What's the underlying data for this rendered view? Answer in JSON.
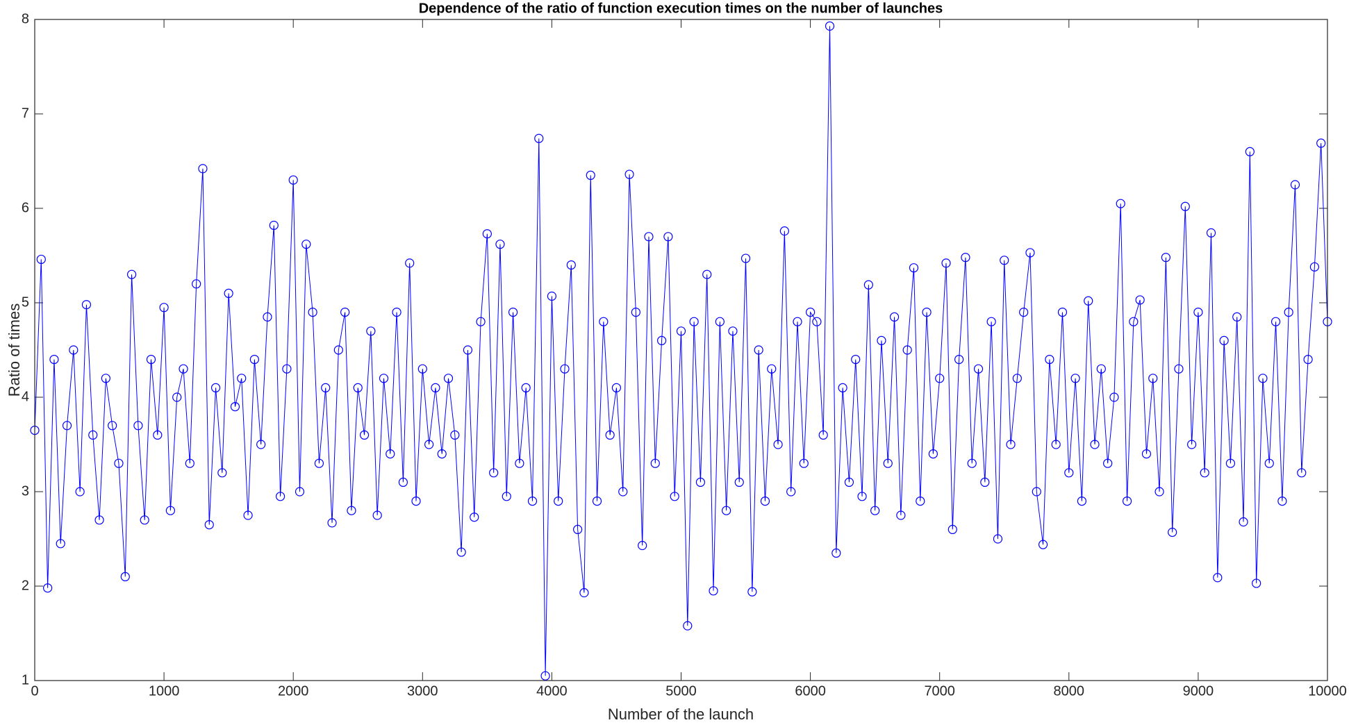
{
  "chart_data": {
    "type": "line",
    "title": "Dependence of the ratio of function execution times on the number of launches",
    "x_label": "Number of the launch",
    "y_label": "Ratio of times",
    "color": "#0000ff",
    "marker": "circle",
    "grid": false,
    "xlim": [
      0,
      10000
    ],
    "xticks": [
      0,
      1000,
      2000,
      3000,
      4000,
      5000,
      6000,
      7000,
      8000,
      9000,
      10000
    ],
    "ylim": [
      1,
      8
    ],
    "yticks": [
      1,
      2,
      3,
      4,
      5,
      6,
      7,
      8
    ],
    "x": [
      0,
      50,
      100,
      150,
      200,
      250,
      300,
      350,
      400,
      450,
      500,
      550,
      600,
      650,
      700,
      750,
      800,
      850,
      900,
      950,
      1000,
      1050,
      1100,
      1150,
      1200,
      1250,
      1300,
      1350,
      1400,
      1450,
      1500,
      1550,
      1600,
      1650,
      1700,
      1750,
      1800,
      1850,
      1900,
      1950,
      2000,
      2050,
      2100,
      2150,
      2200,
      2250,
      2300,
      2350,
      2400,
      2450,
      2500,
      2550,
      2600,
      2650,
      2700,
      2750,
      2800,
      2850,
      2900,
      2950,
      3000,
      3050,
      3100,
      3150,
      3200,
      3250,
      3300,
      3350,
      3400,
      3450,
      3500,
      3550,
      3600,
      3650,
      3700,
      3750,
      3800,
      3850,
      3900,
      3950,
      4000,
      4050,
      4100,
      4150,
      4200,
      4250,
      4300,
      4350,
      4400,
      4450,
      4500,
      4550,
      4600,
      4650,
      4700,
      4750,
      4800,
      4850,
      4900,
      4950,
      5000,
      5050,
      5100,
      5150,
      5200,
      5250,
      5300,
      5350,
      5400,
      5450,
      5500,
      5550,
      5600,
      5650,
      5700,
      5750,
      5800,
      5850,
      5900,
      5950,
      6000,
      6050,
      6100,
      6150,
      6200,
      6250,
      6300,
      6350,
      6400,
      6450,
      6500,
      6550,
      6600,
      6650,
      6700,
      6750,
      6800,
      6850,
      6900,
      6950,
      7000,
      7050,
      7100,
      7150,
      7200,
      7250,
      7300,
      7350,
      7400,
      7450,
      7500,
      7550,
      7600,
      7650,
      7700,
      7750,
      7800,
      7850,
      7900,
      7950,
      8000,
      8050,
      8100,
      8150,
      8200,
      8250,
      8300,
      8350,
      8400,
      8450,
      8500,
      8550,
      8600,
      8650,
      8700,
      8750,
      8800,
      8850,
      8900,
      8950,
      9000,
      9050,
      9100,
      9150,
      9200,
      9250,
      9300,
      9350,
      9400,
      9450,
      9500,
      9550,
      9600,
      9650,
      9700,
      9750,
      9800,
      9850,
      9900,
      9950,
      10000
    ],
    "values": [
      3.65,
      5.46,
      1.98,
      4.4,
      2.45,
      3.7,
      4.5,
      3.0,
      4.98,
      3.6,
      2.7,
      4.2,
      3.7,
      3.3,
      2.1,
      5.3,
      3.7,
      2.7,
      4.4,
      3.6,
      4.95,
      2.8,
      4.0,
      4.3,
      3.3,
      5.2,
      6.42,
      2.65,
      4.1,
      3.2,
      5.1,
      3.9,
      4.2,
      2.75,
      4.4,
      3.5,
      4.85,
      5.82,
      2.95,
      4.3,
      6.3,
      3.0,
      5.62,
      4.9,
      3.3,
      4.1,
      2.67,
      4.5,
      4.9,
      2.8,
      4.1,
      3.6,
      4.7,
      2.75,
      4.2,
      3.4,
      4.9,
      3.1,
      5.42,
      2.9,
      4.3,
      3.5,
      4.1,
      3.4,
      4.2,
      3.6,
      2.36,
      4.5,
      2.73,
      4.8,
      5.73,
      3.2,
      5.62,
      2.95,
      4.9,
      3.3,
      4.1,
      2.9,
      6.74,
      1.05,
      5.07,
      2.9,
      4.3,
      5.4,
      2.6,
      1.93,
      6.35,
      2.9,
      4.8,
      3.6,
      4.1,
      3.0,
      6.36,
      4.9,
      2.43,
      5.7,
      3.3,
      4.6,
      5.7,
      2.95,
      4.7,
      1.58,
      4.8,
      3.1,
      5.3,
      1.95,
      4.8,
      2.8,
      4.7,
      3.1,
      5.47,
      1.94,
      4.5,
      2.9,
      4.3,
      3.5,
      5.76,
      3.0,
      4.8,
      3.3,
      4.9,
      4.8,
      3.6,
      7.93,
      2.35,
      4.1,
      3.1,
      4.4,
      2.95,
      5.19,
      2.8,
      4.6,
      3.3,
      4.85,
      2.75,
      4.5,
      5.37,
      2.9,
      4.9,
      3.4,
      4.2,
      5.42,
      2.6,
      4.4,
      5.48,
      3.3,
      4.3,
      3.1,
      4.8,
      2.5,
      5.45,
      3.5,
      4.2,
      4.9,
      5.53,
      3.0,
      2.44,
      4.4,
      3.5,
      4.9,
      3.2,
      4.2,
      2.9,
      5.02,
      3.5,
      4.3,
      3.3,
      4.0,
      6.05,
      2.9,
      4.8,
      5.03,
      3.4,
      4.2,
      3.0,
      5.48,
      2.57,
      4.3,
      6.02,
      3.5,
      4.9,
      3.2,
      5.74,
      2.09,
      4.6,
      3.3,
      4.85,
      2.68,
      6.6,
      2.03,
      4.2,
      3.3,
      4.8,
      2.9,
      4.9,
      6.25,
      3.2,
      4.4,
      5.38,
      6.69,
      4.8
    ]
  }
}
